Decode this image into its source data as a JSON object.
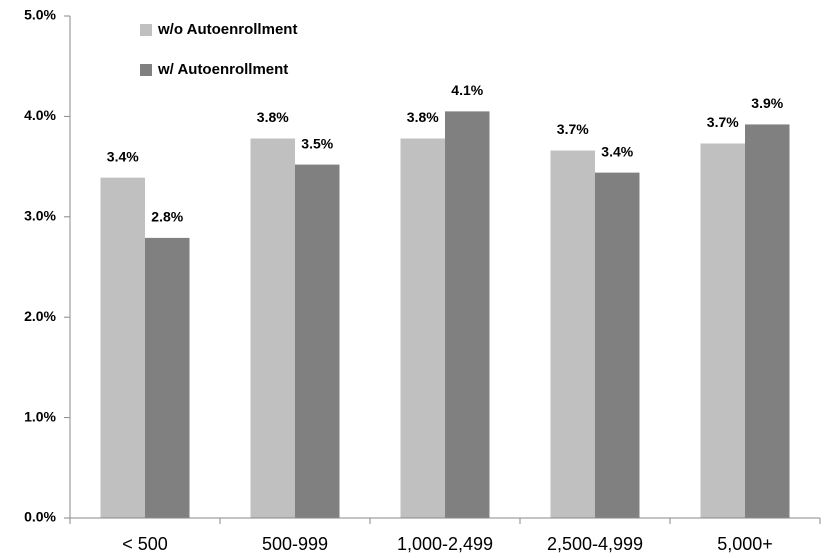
{
  "chart_data": {
    "type": "bar",
    "categories": [
      "< 500",
      "500-999",
      "1,000-2,499",
      "2,500-4,999",
      "5,000+"
    ],
    "series": [
      {
        "name": "w/o Autoenrollment",
        "color": "#c0c0c0",
        "values": [
          3.39,
          3.78,
          3.78,
          3.66,
          3.73
        ],
        "value_labels": [
          "3.4%",
          "3.8%",
          "3.8%",
          "3.7%",
          "3.7%"
        ]
      },
      {
        "name": "w/ Autoenrollment",
        "color": "#808080",
        "values": [
          2.79,
          3.52,
          4.05,
          3.44,
          3.92
        ],
        "value_labels": [
          "2.8%",
          "3.5%",
          "4.1%",
          "3.4%",
          "3.9%"
        ]
      }
    ],
    "ylim": [
      0,
      5
    ],
    "yticks": [
      {
        "value": 0,
        "label": "0.0%"
      },
      {
        "value": 1,
        "label": "1.0%"
      },
      {
        "value": 2,
        "label": "2.0%"
      },
      {
        "value": 3,
        "label": "3.0%"
      },
      {
        "value": 4,
        "label": "4.0%"
      },
      {
        "value": 5,
        "label": "5.0%"
      }
    ],
    "legend": "top-left"
  }
}
